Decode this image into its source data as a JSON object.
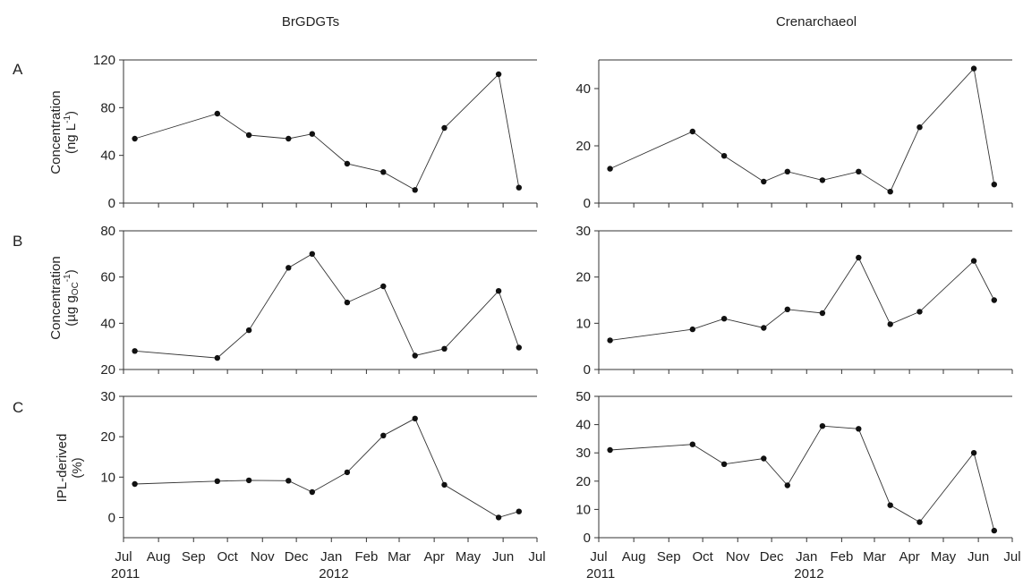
{
  "columns": [
    "BrGDGTs",
    "Crenarchaeol"
  ],
  "rows": [
    {
      "letter": "A",
      "ylabel_line1": "Concentration",
      "ylabel_line2": "(ng L",
      "ylabel_sup": "-1",
      "ylabel_end": ")"
    },
    {
      "letter": "B",
      "ylabel_line1": "Concentration",
      "ylabel_line2": "(µg g",
      "ylabel_sub": "OC",
      "ylabel_sup": "-1",
      "ylabel_end": ")"
    },
    {
      "letter": "C",
      "ylabel_line1": "IPL-derived",
      "ylabel_line2": "(%)"
    }
  ],
  "x_axis": {
    "range": [
      "2011-07-01",
      "2012-07-01"
    ],
    "ticks": [
      "Jul",
      "Aug",
      "Sep",
      "Oct",
      "Nov",
      "Dec",
      "Jan",
      "Feb",
      "Mar",
      "Apr",
      "May",
      "Jun",
      "Jul"
    ],
    "year_labels": [
      {
        "at_tick": 0,
        "label": "2011"
      },
      {
        "at_tick": 6,
        "label": "2012"
      }
    ]
  },
  "chart_data": [
    {
      "type": "line",
      "row": "A",
      "column": "BrGDGTs",
      "ylim": [
        0,
        120
      ],
      "yticks": [
        0,
        40,
        80,
        120
      ],
      "x": [
        "2011-07-11",
        "2011-09-22",
        "2011-10-20",
        "2011-11-24",
        "2011-12-15",
        "2012-01-15",
        "2012-02-16",
        "2012-03-15",
        "2012-04-10",
        "2012-05-28",
        "2012-06-15"
      ],
      "values": [
        54,
        75,
        57,
        54,
        58,
        33,
        26,
        11,
        63,
        108,
        13
      ]
    },
    {
      "type": "line",
      "row": "A",
      "column": "Crenarchaeol",
      "ylim": [
        0,
        50
      ],
      "yticks": [
        0,
        20,
        40
      ],
      "x": [
        "2011-07-11",
        "2011-09-22",
        "2011-10-20",
        "2011-11-24",
        "2011-12-15",
        "2012-01-15",
        "2012-02-16",
        "2012-03-15",
        "2012-04-10",
        "2012-05-28",
        "2012-06-15"
      ],
      "values": [
        12,
        25,
        16.5,
        7.5,
        11,
        8,
        11,
        4,
        26.5,
        47,
        6.5
      ]
    },
    {
      "type": "line",
      "row": "B",
      "column": "BrGDGTs",
      "ylim": [
        20,
        80
      ],
      "yticks": [
        20,
        40,
        60,
        80
      ],
      "x": [
        "2011-07-11",
        "2011-09-22",
        "2011-10-20",
        "2011-11-24",
        "2011-12-15",
        "2012-01-15",
        "2012-02-16",
        "2012-03-15",
        "2012-04-10",
        "2012-05-28",
        "2012-06-15"
      ],
      "values": [
        28,
        25,
        37,
        64,
        70,
        49,
        56,
        26,
        29,
        54,
        29.5
      ]
    },
    {
      "type": "line",
      "row": "B",
      "column": "Crenarchaeol",
      "ylim": [
        0,
        30
      ],
      "yticks": [
        0,
        10,
        20,
        30
      ],
      "x": [
        "2011-07-11",
        "2011-09-22",
        "2011-10-20",
        "2011-11-24",
        "2011-12-15",
        "2012-01-15",
        "2012-02-16",
        "2012-03-15",
        "2012-04-10",
        "2012-05-28",
        "2012-06-15"
      ],
      "values": [
        6.3,
        8.7,
        11,
        9,
        13,
        12.2,
        24.2,
        9.8,
        12.5,
        23.5,
        15
      ]
    },
    {
      "type": "line",
      "row": "C",
      "column": "BrGDGTs",
      "ylim": [
        -5,
        30
      ],
      "yticks": [
        0,
        10,
        20,
        30
      ],
      "x": [
        "2011-07-11",
        "2011-09-22",
        "2011-10-20",
        "2011-11-24",
        "2011-12-15",
        "2012-01-15",
        "2012-02-16",
        "2012-03-15",
        "2012-04-10",
        "2012-05-28",
        "2012-06-15"
      ],
      "values": [
        8.3,
        9,
        9.2,
        9.1,
        6.3,
        11.2,
        20.3,
        24.5,
        8.1,
        0,
        1.5
      ]
    },
    {
      "type": "line",
      "row": "C",
      "column": "Crenarchaeol",
      "ylim": [
        0,
        50
      ],
      "yticks": [
        0,
        10,
        20,
        30,
        40,
        50
      ],
      "x": [
        "2011-07-11",
        "2011-09-22",
        "2011-10-20",
        "2011-11-24",
        "2011-12-15",
        "2012-01-15",
        "2012-02-16",
        "2012-03-15",
        "2012-04-10",
        "2012-05-28",
        "2012-06-15"
      ],
      "values": [
        31,
        33,
        26,
        28,
        18.5,
        39.5,
        38.5,
        11.5,
        5.5,
        30,
        2.5
      ]
    }
  ]
}
